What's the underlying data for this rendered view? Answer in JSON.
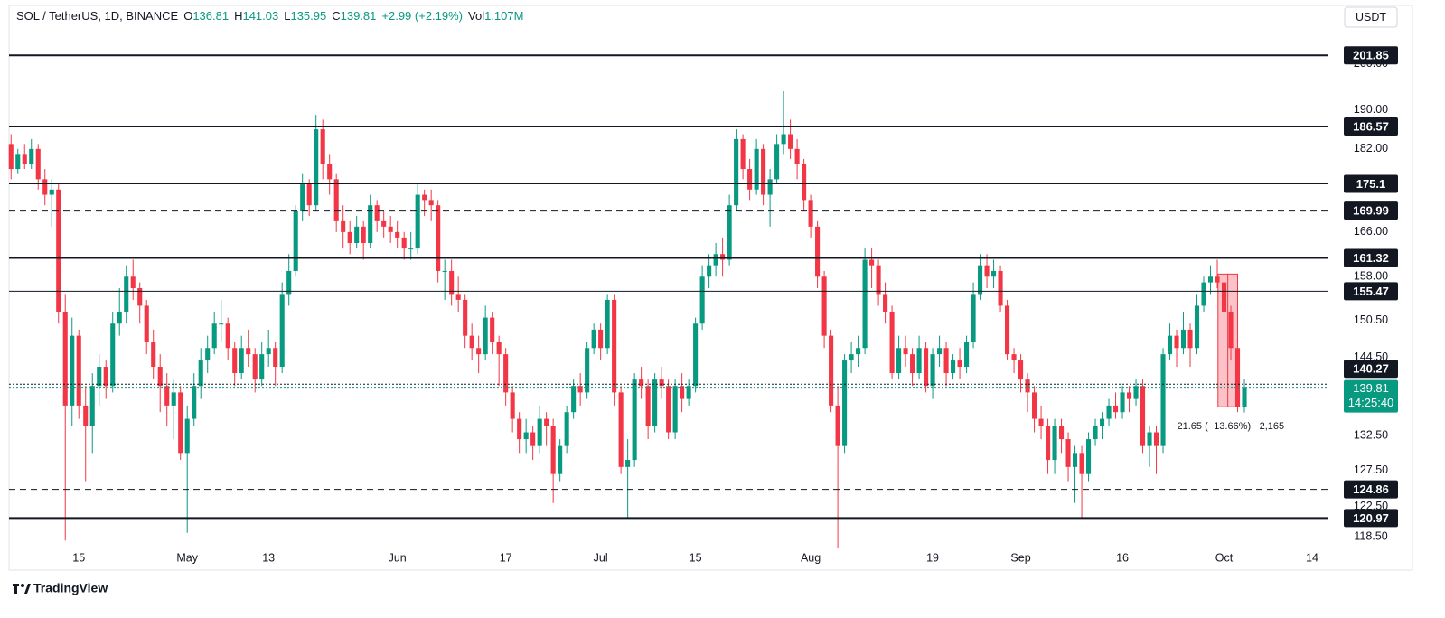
{
  "chart_data": {
    "type": "candlestick",
    "scale": "log",
    "up_color": "#089981",
    "down_color": "#f23645",
    "header": {
      "symbol": "SOL / TetherUS, 1D, BINANCE",
      "ohlc": [
        {
          "k": "O",
          "v": "136.81"
        },
        {
          "k": "H",
          "v": "141.03"
        },
        {
          "k": "L",
          "v": "135.95"
        },
        {
          "k": "C",
          "v": "139.81"
        }
      ],
      "change": "+2.99 (+2.19%)",
      "volume_label": "Vol",
      "volume": "1.107M"
    },
    "currency": "USDT",
    "brand": "TradingView",
    "ylim": [
      117.2,
      212.9
    ],
    "xlim": [
      -0.3,
      194.4
    ],
    "yticks": [
      {
        "value": 118.5,
        "label": "118.50"
      },
      {
        "value": 122.5,
        "label": "122.50"
      },
      {
        "value": 127.5,
        "label": "127.50"
      },
      {
        "value": 132.5,
        "label": "132.50"
      },
      {
        "value": 144.5,
        "label": "144.50"
      },
      {
        "value": 150.5,
        "label": "150.50"
      },
      {
        "value": 158,
        "label": "158.00"
      },
      {
        "value": 166,
        "label": "166.00"
      },
      {
        "value": 182,
        "label": "182.00"
      },
      {
        "value": 190,
        "label": "190.00"
      },
      {
        "value": 200,
        "label": "200.00"
      }
    ],
    "xticks": [
      {
        "value": 10,
        "label": "15"
      },
      {
        "value": 26,
        "label": "May"
      },
      {
        "value": 38,
        "label": "13"
      },
      {
        "value": 57,
        "label": "Jun"
      },
      {
        "value": 73,
        "label": "17"
      },
      {
        "value": 87,
        "label": "Jul"
      },
      {
        "value": 101,
        "label": "15"
      },
      {
        "value": 118,
        "label": "Aug"
      },
      {
        "value": 136,
        "label": "19"
      },
      {
        "value": 149,
        "label": "Sep"
      },
      {
        "value": 164,
        "label": "16"
      },
      {
        "value": 179,
        "label": "Oct"
      },
      {
        "value": 192,
        "label": "14"
      }
    ],
    "levels": [
      {
        "value": 201.85,
        "style": "solid",
        "width": 2
      },
      {
        "value": 186.57,
        "style": "solid",
        "width": 2
      },
      {
        "value": 175.1,
        "style": "solid",
        "width": 1
      },
      {
        "value": 169.99,
        "style": "dashed",
        "width": 2
      },
      {
        "value": 161.32,
        "style": "solid",
        "width": 2
      },
      {
        "value": 155.47,
        "style": "solid",
        "width": 1
      },
      {
        "value": 140.27,
        "style": "dotted",
        "width": 1
      },
      {
        "value": 124.86,
        "style": "dashed",
        "width": 1
      },
      {
        "value": 120.97,
        "style": "solid",
        "width": 2
      }
    ],
    "last": {
      "value": 139.81,
      "countdown": "14:25:40"
    },
    "measure": {
      "from": 158.46,
      "to": 136.81,
      "start": 178.1,
      "end": 181,
      "label": "−21.65 (−13.66%) −2,165"
    },
    "ohlc": [
      [
        183,
        185,
        176,
        178
      ],
      [
        178,
        182,
        177,
        181
      ],
      [
        181,
        183,
        178,
        179
      ],
      [
        179,
        184,
        178,
        182
      ],
      [
        182,
        183,
        174,
        176
      ],
      [
        176,
        178,
        171,
        173
      ],
      [
        173,
        176,
        167,
        174
      ],
      [
        174,
        175,
        150,
        152
      ],
      [
        152,
        155,
        118,
        137
      ],
      [
        137,
        151,
        134,
        148
      ],
      [
        148,
        149,
        135,
        137
      ],
      [
        137,
        140,
        126,
        134
      ],
      [
        134,
        142,
        130,
        140
      ],
      [
        140,
        145,
        137,
        143
      ],
      [
        143,
        144,
        138,
        140
      ],
      [
        140,
        152,
        139,
        150
      ],
      [
        150,
        156,
        148,
        152
      ],
      [
        152,
        160,
        150,
        158
      ],
      [
        158,
        161,
        154,
        156
      ],
      [
        156,
        157,
        150,
        153
      ],
      [
        153,
        154,
        145,
        147
      ],
      [
        147,
        149,
        141,
        143
      ],
      [
        143,
        145,
        136,
        140
      ],
      [
        140,
        142,
        134,
        137
      ],
      [
        137,
        141,
        132,
        139
      ],
      [
        139,
        140,
        129,
        130
      ],
      [
        130,
        137,
        119,
        135
      ],
      [
        135,
        142,
        134,
        140
      ],
      [
        140,
        146,
        138,
        144
      ],
      [
        144,
        148,
        142,
        146
      ],
      [
        146,
        152,
        145,
        150
      ],
      [
        150,
        154,
        147,
        150
      ],
      [
        150,
        151,
        144,
        146
      ],
      [
        146,
        147,
        140,
        142
      ],
      [
        142,
        148,
        141,
        146
      ],
      [
        146,
        149,
        143,
        145
      ],
      [
        145,
        146,
        139,
        141
      ],
      [
        141,
        147,
        140,
        145
      ],
      [
        145,
        149,
        143,
        146
      ],
      [
        146,
        147,
        140,
        143
      ],
      [
        143,
        157,
        142,
        155
      ],
      [
        155,
        162,
        153,
        159
      ],
      [
        159,
        171,
        158,
        170
      ],
      [
        170,
        177,
        168,
        175
      ],
      [
        175,
        176,
        169,
        171
      ],
      [
        171,
        189,
        170,
        186
      ],
      [
        186,
        188,
        176,
        179
      ],
      [
        179,
        181,
        173,
        176
      ],
      [
        176,
        177,
        166,
        168
      ],
      [
        168,
        171,
        163,
        166
      ],
      [
        166,
        168,
        162,
        164
      ],
      [
        164,
        169,
        163,
        167
      ],
      [
        167,
        168,
        161,
        164
      ],
      [
        164,
        173,
        163,
        171
      ],
      [
        171,
        172,
        166,
        168
      ],
      [
        168,
        170,
        165,
        167
      ],
      [
        167,
        169,
        164,
        166
      ],
      [
        166,
        168,
        163,
        165
      ],
      [
        165,
        166,
        161,
        163
      ],
      [
        163,
        166,
        161,
        163
      ],
      [
        163,
        175,
        162,
        173
      ],
      [
        173,
        174,
        169,
        172
      ],
      [
        172,
        174,
        168,
        171
      ],
      [
        171,
        172,
        157,
        159
      ],
      [
        159,
        161,
        154,
        159
      ],
      [
        159,
        161,
        153,
        155
      ],
      [
        155,
        158,
        152,
        154
      ],
      [
        154,
        155,
        146,
        148
      ],
      [
        148,
        150,
        144,
        146
      ],
      [
        146,
        148,
        142,
        145
      ],
      [
        145,
        153,
        144,
        151
      ],
      [
        151,
        152,
        145,
        147
      ],
      [
        147,
        148,
        140,
        145
      ],
      [
        145,
        146,
        137,
        139
      ],
      [
        139,
        140,
        133,
        135
      ],
      [
        135,
        136,
        130,
        132
      ],
      [
        132,
        135,
        130,
        133
      ],
      [
        133,
        134,
        129,
        131
      ],
      [
        131,
        137,
        130,
        135
      ],
      [
        135,
        136,
        131,
        134
      ],
      [
        134,
        135,
        123,
        127
      ],
      [
        127,
        132,
        126,
        131
      ],
      [
        131,
        137,
        130,
        136
      ],
      [
        136,
        141,
        135,
        140
      ],
      [
        140,
        142,
        137,
        139
      ],
      [
        139,
        147,
        138,
        146
      ],
      [
        146,
        150,
        145,
        149
      ],
      [
        149,
        150,
        144,
        146
      ],
      [
        146,
        155,
        145,
        154
      ],
      [
        154,
        155,
        137,
        139
      ],
      [
        139,
        140,
        127,
        128
      ],
      [
        128,
        132,
        121,
        129
      ],
      [
        129,
        142,
        128,
        141
      ],
      [
        141,
        143,
        138,
        140
      ],
      [
        140,
        141,
        132,
        134
      ],
      [
        134,
        142,
        133,
        141
      ],
      [
        141,
        143,
        138,
        140
      ],
      [
        140,
        141,
        132,
        133
      ],
      [
        133,
        141,
        132,
        140
      ],
      [
        140,
        142,
        136,
        138
      ],
      [
        138,
        141,
        137,
        140
      ],
      [
        140,
        151,
        139,
        150
      ],
      [
        150,
        160,
        149,
        158
      ],
      [
        158,
        162,
        156,
        160
      ],
      [
        160,
        164,
        158,
        162
      ],
      [
        162,
        165,
        158,
        161
      ],
      [
        161,
        173,
        160,
        171
      ],
      [
        171,
        186,
        170,
        184
      ],
      [
        184,
        185,
        176,
        178
      ],
      [
        178,
        180,
        172,
        174
      ],
      [
        174,
        184,
        173,
        182
      ],
      [
        182,
        183,
        171,
        173
      ],
      [
        173,
        178,
        167,
        176
      ],
      [
        176,
        185,
        175,
        183
      ],
      [
        183,
        194,
        181,
        185
      ],
      [
        185,
        188,
        180,
        182
      ],
      [
        182,
        184,
        176,
        179
      ],
      [
        179,
        180,
        170,
        172
      ],
      [
        172,
        173,
        165,
        167
      ],
      [
        167,
        168,
        156,
        158
      ],
      [
        158,
        159,
        146,
        148
      ],
      [
        148,
        149,
        136,
        137
      ],
      [
        137,
        140,
        117,
        131
      ],
      [
        131,
        145,
        130,
        144
      ],
      [
        144,
        147,
        142,
        145
      ],
      [
        145,
        148,
        143,
        146
      ],
      [
        146,
        163,
        145,
        161
      ],
      [
        161,
        163,
        156,
        160
      ],
      [
        160,
        161,
        153,
        155
      ],
      [
        155,
        157,
        150,
        152
      ],
      [
        152,
        153,
        141,
        142
      ],
      [
        142,
        148,
        141,
        146
      ],
      [
        146,
        148,
        143,
        145
      ],
      [
        145,
        146,
        140,
        142
      ],
      [
        142,
        148,
        141,
        146
      ],
      [
        146,
        147,
        139,
        140
      ],
      [
        140,
        146,
        138,
        145
      ],
      [
        145,
        148,
        143,
        146
      ],
      [
        146,
        147,
        140,
        142
      ],
      [
        142,
        145,
        141,
        144
      ],
      [
        144,
        146,
        141,
        143
      ],
      [
        143,
        148,
        142,
        147
      ],
      [
        147,
        157,
        146,
        155
      ],
      [
        155,
        162,
        154,
        160
      ],
      [
        160,
        162,
        156,
        158
      ],
      [
        158,
        161,
        156,
        159
      ],
      [
        159,
        160,
        152,
        153
      ],
      [
        153,
        154,
        144,
        145
      ],
      [
        145,
        146,
        142,
        144
      ],
      [
        144,
        145,
        139,
        141
      ],
      [
        141,
        142,
        136,
        139
      ],
      [
        139,
        140,
        133,
        135
      ],
      [
        135,
        137,
        132,
        134
      ],
      [
        134,
        135,
        127,
        129
      ],
      [
        129,
        135,
        127,
        134
      ],
      [
        134,
        135,
        130,
        132
      ],
      [
        132,
        133,
        126,
        128
      ],
      [
        128,
        131,
        123,
        130
      ],
      [
        130,
        131,
        121,
        127
      ],
      [
        127,
        133,
        126,
        132
      ],
      [
        132,
        135,
        131,
        134
      ],
      [
        134,
        136,
        132,
        135
      ],
      [
        135,
        138,
        134,
        137
      ],
      [
        137,
        139,
        135,
        136
      ],
      [
        136,
        140,
        135,
        139
      ],
      [
        139,
        140,
        136,
        138
      ],
      [
        138,
        141,
        137,
        140
      ],
      [
        140,
        141,
        130,
        131
      ],
      [
        131,
        134,
        128,
        133
      ],
      [
        133,
        134,
        127,
        131
      ],
      [
        131,
        146,
        130,
        145
      ],
      [
        145,
        150,
        144,
        148
      ],
      [
        148,
        149,
        143,
        146
      ],
      [
        146,
        152,
        145,
        149
      ],
      [
        149,
        150,
        143,
        146
      ],
      [
        146,
        155,
        145,
        153
      ],
      [
        153,
        158,
        152,
        157
      ],
      [
        157,
        160,
        155,
        158
      ],
      [
        158,
        161,
        156,
        157
      ],
      [
        157,
        158,
        151,
        152
      ],
      [
        152,
        153,
        144,
        146
      ],
      [
        146,
        148,
        136,
        136.81
      ],
      [
        136.81,
        141.03,
        135.95,
        139.81
      ]
    ]
  }
}
